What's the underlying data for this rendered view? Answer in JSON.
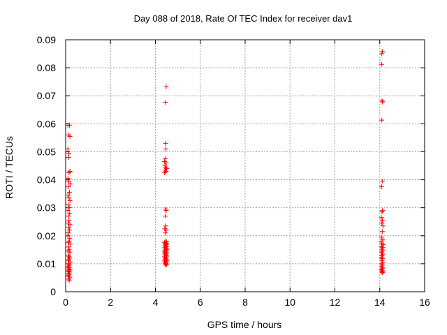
{
  "chart_data": {
    "type": "scatter",
    "title": "Day 088 of 2018, Rate Of TEC Index for receiver dav1",
    "xlabel": "GPS time / hours",
    "ylabel": "ROTI / TECUs",
    "xlim": [
      0,
      16
    ],
    "ylim": [
      0,
      0.09
    ],
    "x_ticks": [
      0,
      2,
      4,
      6,
      8,
      10,
      12,
      14,
      16
    ],
    "y_ticks": [
      0,
      0.01,
      0.02,
      0.03,
      0.04,
      0.05,
      0.06,
      0.07,
      0.08,
      0.09
    ],
    "x_tick_labels": [
      "0",
      "2",
      "4",
      "6",
      "8",
      "10",
      "12",
      "14",
      "16"
    ],
    "y_tick_labels": [
      "0",
      "0.01",
      "0.02",
      "0.03",
      "0.04",
      "0.05",
      "0.06",
      "0.07",
      "0.08",
      "0.09"
    ],
    "grid": true,
    "marker": "+",
    "marker_color": "#ff0000",
    "series": [
      {
        "name": "dav1",
        "points": [
          [
            0.1,
            0.0595
          ],
          [
            0.17,
            0.0595
          ],
          [
            0.14,
            0.056
          ],
          [
            0.19,
            0.0555
          ],
          [
            0.1,
            0.051
          ],
          [
            0.14,
            0.0495
          ],
          [
            0.12,
            0.048
          ],
          [
            0.19,
            0.043
          ],
          [
            0.15,
            0.0425
          ],
          [
            0.1,
            0.0405
          ],
          [
            0.14,
            0.0395
          ],
          [
            0.2,
            0.0385
          ],
          [
            0.12,
            0.0375
          ],
          [
            0.17,
            0.0355
          ],
          [
            0.1,
            0.0345
          ],
          [
            0.15,
            0.0335
          ],
          [
            0.19,
            0.0325
          ],
          [
            0.12,
            0.031
          ],
          [
            0.16,
            0.03
          ],
          [
            0.1,
            0.029
          ],
          [
            0.18,
            0.028
          ],
          [
            0.13,
            0.027
          ],
          [
            0.15,
            0.0255
          ],
          [
            0.11,
            0.0245
          ],
          [
            0.19,
            0.024
          ],
          [
            0.14,
            0.023
          ],
          [
            0.17,
            0.022
          ],
          [
            0.12,
            0.021
          ],
          [
            0.1,
            0.02
          ],
          [
            0.18,
            0.019
          ],
          [
            0.15,
            0.018
          ],
          [
            0.11,
            0.0175
          ],
          [
            0.2,
            0.017
          ],
          [
            0.13,
            0.016
          ],
          [
            0.16,
            0.015
          ],
          [
            0.1,
            0.0145
          ],
          [
            0.19,
            0.014
          ],
          [
            0.12,
            0.013
          ],
          [
            0.15,
            0.0125
          ],
          [
            0.18,
            0.012
          ],
          [
            0.11,
            0.0115
          ],
          [
            0.14,
            0.011
          ],
          [
            0.2,
            0.0105
          ],
          [
            0.13,
            0.01
          ],
          [
            0.16,
            0.0095
          ],
          [
            0.1,
            0.009
          ],
          [
            0.18,
            0.0088
          ],
          [
            0.12,
            0.0085
          ],
          [
            0.15,
            0.008
          ],
          [
            0.19,
            0.0078
          ],
          [
            0.11,
            0.0075
          ],
          [
            0.14,
            0.0072
          ],
          [
            0.17,
            0.007
          ],
          [
            0.13,
            0.0065
          ],
          [
            0.16,
            0.0062
          ],
          [
            0.12,
            0.0058
          ],
          [
            0.15,
            0.0055
          ],
          [
            0.18,
            0.005
          ],
          [
            0.14,
            0.0045
          ],
          [
            0.16,
            0.004
          ],
          [
            4.48,
            0.0732
          ],
          [
            4.45,
            0.0677
          ],
          [
            4.45,
            0.053
          ],
          [
            4.47,
            0.051
          ],
          [
            4.44,
            0.0475
          ],
          [
            4.4,
            0.0465
          ],
          [
            4.48,
            0.046
          ],
          [
            4.42,
            0.0452
          ],
          [
            4.46,
            0.0445
          ],
          [
            4.5,
            0.044
          ],
          [
            4.43,
            0.0435
          ],
          [
            4.47,
            0.043
          ],
          [
            4.41,
            0.0425
          ],
          [
            4.45,
            0.0295
          ],
          [
            4.48,
            0.029
          ],
          [
            4.44,
            0.027
          ],
          [
            4.46,
            0.0235
          ],
          [
            4.42,
            0.0225
          ],
          [
            4.48,
            0.022
          ],
          [
            4.45,
            0.021
          ],
          [
            4.43,
            0.018
          ],
          [
            4.5,
            0.0178
          ],
          [
            4.4,
            0.0175
          ],
          [
            4.46,
            0.0173
          ],
          [
            4.52,
            0.0172
          ],
          [
            4.44,
            0.017
          ],
          [
            4.48,
            0.0168
          ],
          [
            4.42,
            0.0165
          ],
          [
            4.5,
            0.0162
          ],
          [
            4.45,
            0.016
          ],
          [
            4.41,
            0.0157
          ],
          [
            4.47,
            0.0155
          ],
          [
            4.52,
            0.0152
          ],
          [
            4.43,
            0.015
          ],
          [
            4.49,
            0.0147
          ],
          [
            4.44,
            0.0145
          ],
          [
            4.4,
            0.0142
          ],
          [
            4.51,
            0.014
          ],
          [
            4.46,
            0.0137
          ],
          [
            4.42,
            0.0135
          ],
          [
            4.48,
            0.0132
          ],
          [
            4.44,
            0.013
          ],
          [
            4.5,
            0.0127
          ],
          [
            4.41,
            0.0125
          ],
          [
            4.47,
            0.0122
          ],
          [
            4.43,
            0.012
          ],
          [
            4.49,
            0.0117
          ],
          [
            4.45,
            0.0115
          ],
          [
            4.4,
            0.0112
          ],
          [
            4.52,
            0.011
          ],
          [
            4.46,
            0.0107
          ],
          [
            4.42,
            0.0105
          ],
          [
            4.48,
            0.0102
          ],
          [
            4.44,
            0.01
          ],
          [
            4.5,
            0.0098
          ],
          [
            4.46,
            0.0095
          ],
          [
            14.12,
            0.0858
          ],
          [
            14.09,
            0.085
          ],
          [
            14.08,
            0.0812
          ],
          [
            14.1,
            0.0682
          ],
          [
            14.13,
            0.0678
          ],
          [
            14.09,
            0.0613
          ],
          [
            14.11,
            0.0395
          ],
          [
            14.08,
            0.0375
          ],
          [
            14.13,
            0.029
          ],
          [
            14.1,
            0.0285
          ],
          [
            14.07,
            0.0265
          ],
          [
            14.12,
            0.0255
          ],
          [
            14.09,
            0.0245
          ],
          [
            14.14,
            0.0235
          ],
          [
            14.11,
            0.0215
          ],
          [
            14.08,
            0.0195
          ],
          [
            14.13,
            0.0185
          ],
          [
            14.06,
            0.0178
          ],
          [
            14.1,
            0.0172
          ],
          [
            14.15,
            0.0168
          ],
          [
            14.08,
            0.0162
          ],
          [
            14.12,
            0.0158
          ],
          [
            14.09,
            0.0152
          ],
          [
            14.14,
            0.0148
          ],
          [
            14.07,
            0.0142
          ],
          [
            14.11,
            0.0138
          ],
          [
            14.13,
            0.0132
          ],
          [
            14.09,
            0.0128
          ],
          [
            14.06,
            0.0122
          ],
          [
            14.12,
            0.0118
          ],
          [
            14.1,
            0.0112
          ],
          [
            14.14,
            0.0105
          ],
          [
            14.08,
            0.01
          ],
          [
            14.11,
            0.0095
          ],
          [
            14.07,
            0.009
          ],
          [
            14.13,
            0.0085
          ],
          [
            14.1,
            0.0082
          ],
          [
            14.06,
            0.0078
          ],
          [
            14.12,
            0.0075
          ],
          [
            14.09,
            0.0072
          ],
          [
            14.14,
            0.007
          ],
          [
            14.11,
            0.0068
          ]
        ]
      }
    ]
  }
}
